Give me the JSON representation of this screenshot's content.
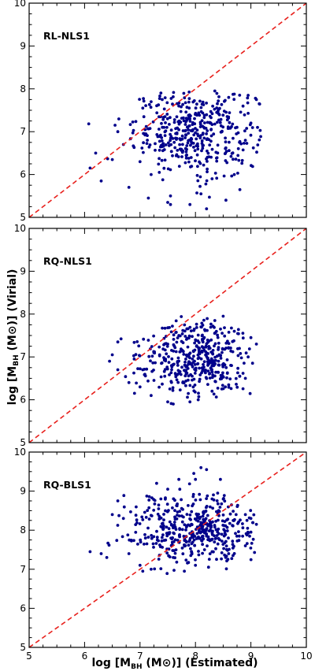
{
  "figure": {
    "xlabel": {
      "prefix": "log [M",
      "sub": "BH",
      "mid": " (M",
      "sun": "⊙",
      "suffix": ")] (Estimated)"
    },
    "ylabel": {
      "prefix": "log [M",
      "sub": "BH",
      "mid": " (M",
      "sun": "⊙",
      "suffix": ")] (Virial)"
    },
    "colors": {
      "points": "#00008b",
      "line": "#e8201c",
      "axes": "#000000"
    }
  },
  "chart_data": [
    {
      "type": "scatter",
      "label": "RL-NLS1",
      "xlim": [
        5,
        10
      ],
      "ylim": [
        5,
        10
      ],
      "xticks": [
        "5",
        "6",
        "7",
        "8",
        "9",
        "10"
      ],
      "yticks": [
        "5",
        "6",
        "7",
        "8",
        "9",
        "10"
      ],
      "reference_line": {
        "style": "dashed",
        "points": [
          [
            5,
            5
          ],
          [
            10,
            10
          ]
        ]
      },
      "cluster": {
        "center": [
          8.0,
          7.0
        ],
        "spread": [
          0.55,
          0.5
        ],
        "count": 420,
        "xrange": [
          6.0,
          9.2
        ],
        "yrange": [
          5.2,
          7.95
        ]
      },
      "points": [
        [
          6.55,
          7.15
        ],
        [
          6.6,
          7.0
        ],
        [
          6.7,
          6.7
        ],
        [
          7.05,
          7.55
        ],
        [
          7.2,
          7.7
        ],
        [
          7.4,
          7.75
        ],
        [
          7.7,
          7.6
        ],
        [
          6.5,
          6.35
        ],
        [
          6.3,
          5.85
        ],
        [
          6.1,
          6.15
        ],
        [
          6.2,
          6.5
        ],
        [
          6.8,
          5.7
        ],
        [
          7.15,
          5.45
        ],
        [
          7.5,
          5.35
        ],
        [
          7.55,
          5.3
        ],
        [
          7.55,
          5.5
        ],
        [
          7.9,
          5.3
        ],
        [
          8.2,
          5.2
        ],
        [
          8.55,
          5.4
        ],
        [
          8.1,
          5.55
        ],
        [
          8.35,
          7.95
        ],
        [
          8.6,
          7.8
        ],
        [
          8.95,
          7.85
        ],
        [
          9.1,
          7.75
        ],
        [
          9.15,
          7.65
        ],
        [
          9.0,
          7.2
        ],
        [
          8.9,
          6.8
        ],
        [
          7.2,
          6.0
        ],
        [
          7.0,
          6.3
        ],
        [
          8.7,
          6.0
        ],
        [
          8.3,
          5.9
        ]
      ]
    },
    {
      "type": "scatter",
      "label": "RQ-NLS1",
      "xlim": [
        5,
        10
      ],
      "ylim": [
        5,
        10
      ],
      "xticks": [
        "5",
        "6",
        "7",
        "8",
        "9",
        "10"
      ],
      "yticks": [
        "5",
        "6",
        "7",
        "8",
        "9",
        "10"
      ],
      "reference_line": {
        "style": "dashed",
        "points": [
          [
            5,
            5
          ],
          [
            10,
            10
          ]
        ]
      },
      "cluster": {
        "center": [
          8.0,
          7.0
        ],
        "spread": [
          0.5,
          0.45
        ],
        "count": 420,
        "xrange": [
          6.5,
          9.1
        ],
        "yrange": [
          5.9,
          7.95
        ]
      },
      "points": [
        [
          6.5,
          7.05
        ],
        [
          6.45,
          6.9
        ],
        [
          6.6,
          7.35
        ],
        [
          6.6,
          6.7
        ],
        [
          6.8,
          6.4
        ],
        [
          6.9,
          6.15
        ],
        [
          7.0,
          6.3
        ],
        [
          7.05,
          6.7
        ],
        [
          7.2,
          6.1
        ],
        [
          7.5,
          5.95
        ],
        [
          7.6,
          5.9
        ],
        [
          7.9,
          5.95
        ],
        [
          8.05,
          6.0
        ],
        [
          8.3,
          6.2
        ],
        [
          8.6,
          6.35
        ],
        [
          8.9,
          6.5
        ],
        [
          8.95,
          7.0
        ],
        [
          9.1,
          7.3
        ],
        [
          9.0,
          7.45
        ],
        [
          8.7,
          7.6
        ],
        [
          8.5,
          7.95
        ],
        [
          8.35,
          7.85
        ],
        [
          8.1,
          7.7
        ],
        [
          7.7,
          7.5
        ],
        [
          7.5,
          7.3
        ],
        [
          7.25,
          7.1
        ]
      ]
    },
    {
      "type": "scatter",
      "label": "RQ-BLS1",
      "xlim": [
        5,
        10
      ],
      "ylim": [
        5,
        10
      ],
      "xticks": [
        "5",
        "6",
        "7",
        "8",
        "9",
        "10"
      ],
      "yticks": [
        "5",
        "6",
        "7",
        "8",
        "9",
        "10"
      ],
      "reference_line": {
        "style": "dashed",
        "points": [
          [
            5,
            5
          ],
          [
            10,
            10
          ]
        ]
      },
      "cluster": {
        "center": [
          8.0,
          8.0
        ],
        "spread": [
          0.6,
          0.45
        ],
        "count": 450,
        "xrange": [
          6.1,
          9.1
        ],
        "yrange": [
          6.85,
          9.6
        ]
      },
      "points": [
        [
          6.1,
          7.45
        ],
        [
          6.3,
          7.4
        ],
        [
          6.4,
          7.3
        ],
        [
          6.5,
          8.4
        ],
        [
          6.6,
          8.75
        ],
        [
          6.7,
          8.3
        ],
        [
          6.8,
          7.4
        ],
        [
          7.0,
          7.1
        ],
        [
          7.05,
          6.95
        ],
        [
          7.2,
          7.0
        ],
        [
          7.3,
          9.2
        ],
        [
          7.5,
          9.05
        ],
        [
          7.7,
          9.3
        ],
        [
          8.0,
          9.3
        ],
        [
          8.1,
          9.6
        ],
        [
          8.2,
          9.55
        ],
        [
          8.45,
          9.3
        ],
        [
          8.4,
          8.95
        ],
        [
          8.3,
          8.8
        ],
        [
          8.65,
          8.65
        ],
        [
          8.9,
          8.4
        ],
        [
          9.0,
          8.3
        ],
        [
          9.1,
          8.15
        ],
        [
          9.0,
          7.95
        ],
        [
          8.9,
          7.6
        ],
        [
          8.6,
          7.4
        ],
        [
          8.3,
          7.45
        ],
        [
          8.0,
          7.1
        ],
        [
          7.8,
          6.95
        ],
        [
          7.6,
          7.3
        ]
      ]
    }
  ]
}
